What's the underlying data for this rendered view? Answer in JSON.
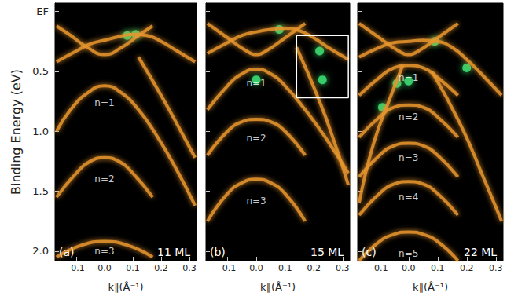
{
  "chart_data": [
    {
      "type": "line",
      "title": "(a)",
      "subtitle": "11 ML",
      "xlabel": "k∥(Å⁻¹)",
      "ylabel": "Binding Energy (eV)",
      "xlim": [
        -0.175,
        0.325
      ],
      "ylim": [
        -0.07,
        2.08
      ],
      "xticks": [
        -0.1,
        {
          "value": 0,
          "label": "0.0"
        },
        0.1,
        0.2,
        0.3
      ],
      "yticks": [
        {
          "value": 0,
          "label": "EF"
        },
        0.5,
        {
          "value": 1,
          "label": "1.0"
        },
        1.5,
        {
          "value": 2,
          "label": "2.0"
        }
      ],
      "color": "#e8952e",
      "series": [
        {
          "x": [
            -0.17,
            -0.1,
            -0.05,
            0,
            0.05,
            0.1,
            0.15,
            0.2,
            0.25,
            0.32
          ],
          "values": [
            0.42,
            0.33,
            0.27,
            0.24,
            0.21,
            0.19,
            0.2,
            0.25,
            0.32,
            0.42
          ]
        },
        {
          "x": [
            -0.17,
            -0.12,
            -0.06,
            0,
            0.06,
            0.12,
            0.17
          ],
          "values": [
            0.12,
            0.2,
            0.3,
            0.36,
            0.3,
            0.2,
            0.12
          ]
        },
        {
          "x": [
            -0.17,
            -0.12,
            -0.06,
            0,
            0.06,
            0.12,
            0.18,
            0.25,
            0.32
          ],
          "values": [
            1.0,
            0.82,
            0.68,
            0.62,
            0.68,
            0.82,
            1.02,
            1.3,
            1.62
          ]
        },
        {
          "x": [
            0.12,
            0.2,
            0.27,
            0.32
          ],
          "values": [
            0.38,
            0.7,
            1.0,
            1.22
          ]
        },
        {
          "x": [
            -0.17,
            -0.1,
            -0.05,
            0,
            0.05,
            0.1,
            0.17
          ],
          "values": [
            1.55,
            1.35,
            1.25,
            1.22,
            1.25,
            1.35,
            1.55
          ]
        },
        {
          "x": [
            -0.17,
            -0.08,
            0,
            0.08,
            0.17
          ],
          "values": [
            2.05,
            1.95,
            1.92,
            1.95,
            2.05
          ]
        },
        {
          "type": "scatter",
          "color": "#39d26b",
          "x": [
            0.08,
            0.11
          ],
          "values": [
            0.2,
            0.19
          ]
        }
      ],
      "annotations": [
        {
          "text": "n=1",
          "x": 0,
          "y": 0.76
        },
        {
          "text": "n=2",
          "x": 0,
          "y": 1.4
        },
        {
          "text": "n=3",
          "x": 0,
          "y": 2.0
        }
      ]
    },
    {
      "type": "line",
      "title": "(b)",
      "subtitle": "15 ML",
      "xlabel": "k∥(Å⁻¹)",
      "xlim": [
        -0.175,
        0.325
      ],
      "ylim": [
        -0.07,
        2.08
      ],
      "xticks": [
        -0.1,
        {
          "value": 0,
          "label": "0.0"
        },
        0.1,
        0.2,
        0.3
      ],
      "yticks": [
        {
          "value": 0,
          "label": "EF"
        },
        0.5,
        {
          "value": 1,
          "label": "1.0"
        },
        1.5,
        {
          "value": 2,
          "label": "2.0"
        }
      ],
      "tick_labels": "x",
      "color": "#e8952e",
      "series": [
        {
          "x": [
            -0.17,
            -0.1,
            -0.05,
            0,
            0.05,
            0.1,
            0.15,
            0.2,
            0.25,
            0.32
          ],
          "values": [
            0.35,
            0.26,
            0.2,
            0.17,
            0.15,
            0.14,
            0.16,
            0.22,
            0.3,
            0.4
          ]
        },
        {
          "x": [
            -0.17,
            -0.1,
            -0.04,
            0,
            0.04,
            0.1,
            0.17
          ],
          "values": [
            0.1,
            0.22,
            0.32,
            0.36,
            0.32,
            0.22,
            0.1
          ]
        },
        {
          "x": [
            -0.17,
            -0.1,
            -0.05,
            0,
            0.05,
            0.1,
            0.17,
            0.24,
            0.32
          ],
          "values": [
            0.82,
            0.62,
            0.52,
            0.48,
            0.52,
            0.62,
            0.82,
            1.05,
            1.35
          ]
        },
        {
          "x": [
            -0.17,
            -0.1,
            -0.05,
            0,
            0.05,
            0.1,
            0.17
          ],
          "values": [
            1.2,
            1.0,
            0.92,
            0.9,
            0.92,
            1.0,
            1.2
          ]
        },
        {
          "x": [
            -0.17,
            -0.1,
            -0.05,
            0,
            0.05,
            0.1,
            0.17
          ],
          "values": [
            1.75,
            1.52,
            1.43,
            1.4,
            1.43,
            1.52,
            1.75
          ]
        },
        {
          "x": [
            0.14,
            0.22,
            0.28,
            0.32
          ],
          "values": [
            0.3,
            0.75,
            1.15,
            1.45
          ]
        },
        {
          "type": "scatter",
          "color": "#39d26b",
          "x": [
            0,
            0.08,
            0.22,
            0.23
          ],
          "values": [
            0.57,
            0.15,
            0.33,
            0.57
          ]
        }
      ],
      "annotations": [
        {
          "text": "n=1",
          "x": 0,
          "y": 0.6
        },
        {
          "text": "n=2",
          "x": 0,
          "y": 1.06
        },
        {
          "text": "n=3",
          "x": 0,
          "y": 1.58
        }
      ],
      "highlight_box": {
        "x": [
          0.14,
          0.32
        ],
        "y": [
          0.2,
          0.72
        ],
        "color": "#ffffff"
      }
    },
    {
      "type": "line",
      "title": "(c)",
      "subtitle": "22 ML",
      "xlabel": "k∥(Å⁻¹)",
      "xlim": [
        -0.175,
        0.325
      ],
      "ylim": [
        -0.07,
        2.08
      ],
      "xticks": [
        -0.1,
        {
          "value": 0,
          "label": "0.0"
        },
        0.1,
        0.2,
        0.3
      ],
      "yticks": [
        {
          "value": 0,
          "label": "EF"
        },
        0.5,
        {
          "value": 1,
          "label": "1.0"
        },
        1.5,
        {
          "value": 2,
          "label": "2.0"
        }
      ],
      "tick_labels": "x",
      "color": "#e8952e",
      "series": [
        {
          "x": [
            -0.17,
            -0.1,
            -0.05,
            0,
            0.05,
            0.1,
            0.15,
            0.2,
            0.25,
            0.32
          ],
          "values": [
            0.38,
            0.3,
            0.26,
            0.25,
            0.24,
            0.25,
            0.3,
            0.4,
            0.52,
            0.7
          ]
        },
        {
          "x": [
            -0.17,
            -0.1,
            -0.04,
            0,
            0.04,
            0.1,
            0.17
          ],
          "values": [
            0.1,
            0.22,
            0.32,
            0.36,
            0.32,
            0.22,
            0.1
          ]
        },
        {
          "x": [
            -0.17,
            -0.1,
            -0.05,
            0,
            0.05,
            0.1,
            0.17
          ],
          "values": [
            0.7,
            0.55,
            0.47,
            0.45,
            0.47,
            0.55,
            0.7
          ]
        },
        {
          "x": [
            -0.17,
            -0.1,
            -0.05,
            0,
            0.05,
            0.1,
            0.17
          ],
          "values": [
            1.05,
            0.88,
            0.8,
            0.78,
            0.8,
            0.88,
            1.05
          ]
        },
        {
          "x": [
            -0.17,
            -0.1,
            -0.05,
            0,
            0.05,
            0.1,
            0.17
          ],
          "values": [
            1.38,
            1.2,
            1.12,
            1.1,
            1.12,
            1.2,
            1.38
          ]
        },
        {
          "x": [
            -0.17,
            -0.1,
            -0.05,
            0,
            0.05,
            0.1,
            0.17
          ],
          "values": [
            1.7,
            1.52,
            1.44,
            1.42,
            1.44,
            1.52,
            1.7
          ]
        },
        {
          "x": [
            -0.17,
            -0.1,
            -0.05,
            0,
            0.05,
            0.1,
            0.17
          ],
          "values": [
            2.08,
            1.92,
            1.86,
            1.84,
            1.86,
            1.92,
            2.08
          ]
        },
        {
          "x": [
            0.08,
            0.18,
            0.26,
            0.32
          ],
          "values": [
            0.5,
            0.95,
            1.4,
            1.75
          ]
        },
        {
          "x": [
            -0.17,
            -0.12,
            -0.06,
            -0.02
          ],
          "values": [
            1.6,
            1.1,
            0.7,
            0.45
          ]
        },
        {
          "type": "scatter",
          "color": "#39d26b",
          "x": [
            -0.09,
            -0.04,
            0,
            0.09,
            0.2
          ],
          "values": [
            0.8,
            0.6,
            0.58,
            0.25,
            0.47
          ]
        }
      ],
      "annotations": [
        {
          "text": "n=1",
          "x": 0,
          "y": 0.55
        },
        {
          "text": "n=2",
          "x": 0,
          "y": 0.88
        },
        {
          "text": "n=3",
          "x": 0,
          "y": 1.22
        },
        {
          "text": "n=4",
          "x": 0,
          "y": 1.55
        },
        {
          "text": "n=5",
          "x": 0,
          "y": 2.02
        }
      ]
    }
  ]
}
